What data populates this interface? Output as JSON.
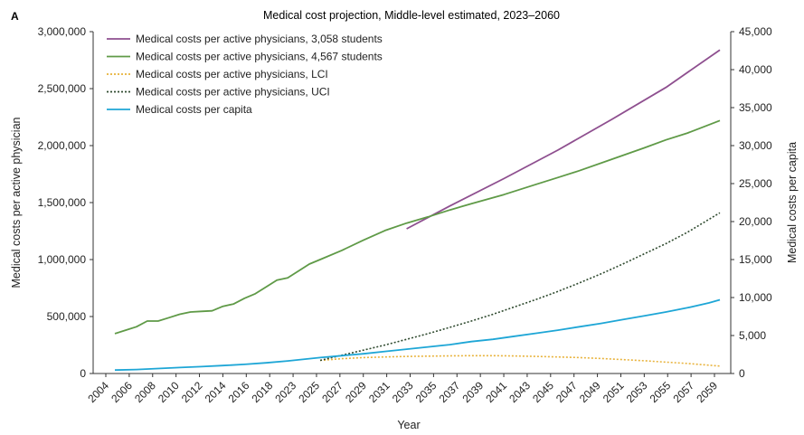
{
  "panel_label": "A",
  "chart_data": {
    "type": "line",
    "title": "Medical cost projection, Middle-level estimated, 2023–2060",
    "xlabel": "Year",
    "ylabel_left": "Medical costs per active physician",
    "ylabel_right": "Medical costs per capita",
    "ylim_left": [
      0,
      3000000
    ],
    "ylim_right": [
      0,
      45000
    ],
    "xlim": [
      2004,
      2060
    ],
    "yticks_left": [
      "0",
      "500,000",
      "1,000,000",
      "1,500,000",
      "2,000,000",
      "2,500,000",
      "3,000,000"
    ],
    "yticks_right": [
      "0",
      "5,000",
      "10,000",
      "15,000",
      "20,000",
      "25,000",
      "30,000",
      "35,000",
      "40,000",
      "45,000"
    ],
    "xtick_labels": [
      "2004",
      "2006",
      "2008",
      "2010",
      "2012",
      "2014",
      "2016",
      "2018",
      "2023",
      "2025",
      "2027",
      "2029",
      "2031",
      "2033",
      "2035",
      "2037",
      "2039",
      "2041",
      "2043",
      "2045",
      "2047",
      "2049",
      "2051",
      "2053",
      "2055",
      "2057",
      "2059"
    ],
    "grid": false,
    "legend_position": "top-left",
    "series": [
      {
        "name": "Medical costs per active physicians, 3,058 students",
        "axis": "left",
        "color": "#8e4f8f",
        "style": "solid",
        "x": [
          2031,
          2035,
          2040,
          2045,
          2050,
          2055,
          2060
        ],
        "y": [
          1270000,
          1470000,
          1710000,
          1960000,
          2230000,
          2510000,
          2840000
        ]
      },
      {
        "name": "Medical costs per active physicians, 4,567 students",
        "axis": "left",
        "color": "#5f9a47",
        "style": "solid",
        "x": [
          2004,
          2005,
          2006,
          2007,
          2008,
          2009,
          2010,
          2011,
          2012,
          2013,
          2014,
          2015,
          2016,
          2017,
          2018,
          2019,
          2020,
          2021,
          2022,
          2023,
          2025,
          2027,
          2029,
          2031,
          2033,
          2035,
          2037,
          2040,
          2043,
          2045,
          2047,
          2050,
          2053,
          2055,
          2057,
          2060
        ],
        "y": [
          350000,
          380000,
          410000,
          460000,
          460000,
          490000,
          520000,
          540000,
          545000,
          550000,
          590000,
          610000,
          660000,
          700000,
          760000,
          820000,
          840000,
          900000,
          960000,
          1000000,
          1080000,
          1170000,
          1255000,
          1320000,
          1375000,
          1435000,
          1490000,
          1570000,
          1660000,
          1720000,
          1780000,
          1880000,
          1980000,
          2050000,
          2110000,
          2220000
        ]
      },
      {
        "name": "Medical costs per active physicians, LCI",
        "axis": "left",
        "color": "#e8b23a",
        "style": "dotted",
        "x": [
          2023,
          2025,
          2027,
          2029,
          2031,
          2033,
          2035,
          2037,
          2039,
          2041,
          2043,
          2045,
          2047,
          2049,
          2051,
          2053,
          2055,
          2057,
          2060
        ],
        "y": [
          115000,
          130000,
          140000,
          145000,
          150000,
          152000,
          155000,
          156000,
          156000,
          154000,
          150000,
          145000,
          140000,
          132000,
          122000,
          112000,
          100000,
          88000,
          65000
        ]
      },
      {
        "name": "Medical costs per active physicians, UCI",
        "axis": "left",
        "color": "#2f4a2f",
        "style": "dotted",
        "x": [
          2023,
          2025,
          2027,
          2029,
          2031,
          2033,
          2035,
          2037,
          2039,
          2041,
          2043,
          2045,
          2047,
          2049,
          2051,
          2053,
          2055,
          2057,
          2060
        ],
        "y": [
          115000,
          160000,
          205000,
          250000,
          300000,
          350000,
          405000,
          460000,
          520000,
          585000,
          650000,
          720000,
          795000,
          875000,
          960000,
          1050000,
          1140000,
          1240000,
          1410000
        ]
      },
      {
        "name": "Medical costs per capita",
        "axis": "right",
        "color": "#1ea6d6",
        "style": "solid",
        "x": [
          2004,
          2006,
          2008,
          2010,
          2012,
          2014,
          2016,
          2018,
          2020,
          2023,
          2025,
          2027,
          2029,
          2031,
          2033,
          2035,
          2037,
          2039,
          2041,
          2043,
          2045,
          2047,
          2049,
          2051,
          2053,
          2055,
          2057,
          2059,
          2060
        ],
        "y": [
          450,
          520,
          660,
          780,
          900,
          1050,
          1200,
          1400,
          1650,
          2100,
          2350,
          2600,
          2900,
          3200,
          3500,
          3800,
          4200,
          4500,
          4900,
          5300,
          5700,
          6150,
          6600,
          7100,
          7600,
          8100,
          8650,
          9300,
          9700
        ]
      }
    ]
  }
}
